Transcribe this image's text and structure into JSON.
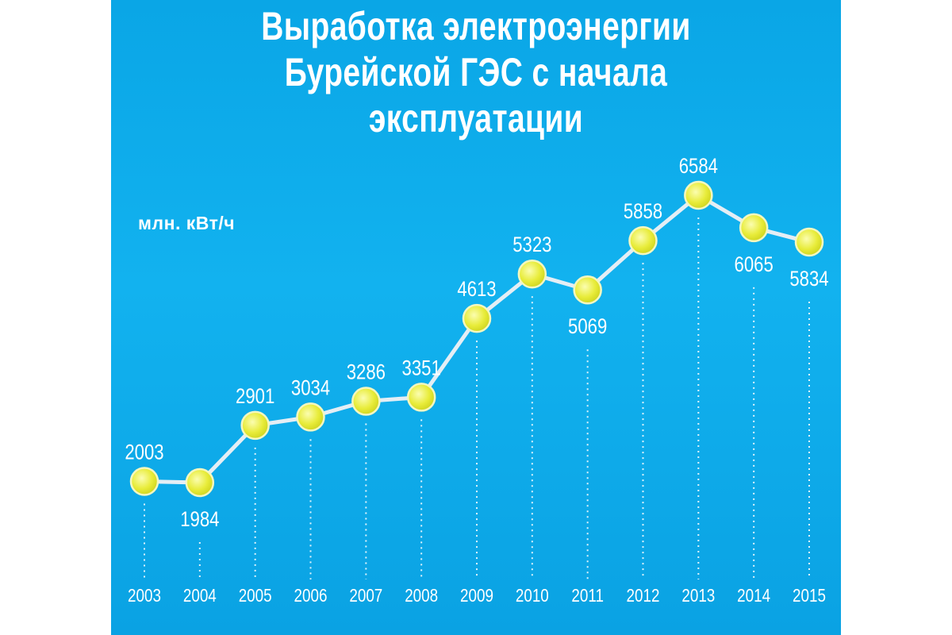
{
  "title_lines": [
    "Выработка электроэнергии",
    "Бурейской ГЭС с начала",
    "эксплуатации"
  ],
  "unit_label": "млн. кВт/ч",
  "colors": {
    "background": "#0aa6e6",
    "line": "#e4eef5",
    "marker_fill": "#e8ec3a",
    "marker_stroke": "#f4f7c0",
    "text": "#ffffff"
  },
  "chart_data": {
    "type": "line",
    "title": "Выработка электроэнергии Бурейской ГЭС с начала эксплуатации",
    "ylabel": "млн. кВт/ч",
    "xlabel": "",
    "categories": [
      "2003",
      "2004",
      "2005",
      "2006",
      "2007",
      "2008",
      "2009",
      "2010",
      "2011",
      "2012",
      "2013",
      "2014",
      "2015"
    ],
    "values": [
      2003,
      1984,
      2901,
      3034,
      3286,
      3351,
      4613,
      5323,
      5069,
      5858,
      6584,
      6065,
      5834
    ],
    "data_labels": [
      "2003",
      "1984",
      "2901",
      "3034",
      "3286",
      "3351",
      "4613",
      "5323",
      "5069",
      "5858",
      "6584",
      "6065",
      "5834"
    ],
    "label_positions": [
      "above",
      "below",
      "above",
      "above",
      "above",
      "above",
      "above",
      "above",
      "below",
      "above",
      "above",
      "below",
      "below"
    ],
    "ylim": [
      1700,
      6700
    ],
    "grid": false,
    "legend": "none"
  }
}
